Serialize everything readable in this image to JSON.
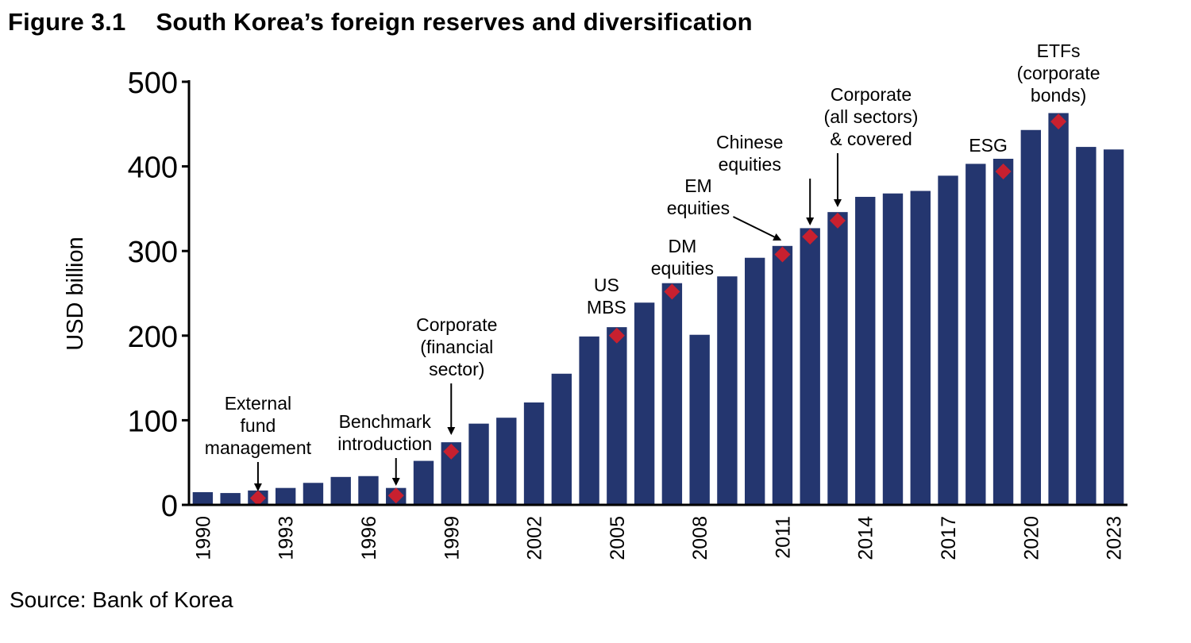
{
  "figure": {
    "label": "Figure 3.1",
    "title": "South Korea’s foreign reserves and diversification",
    "source": "Source: Bank of Korea"
  },
  "colors": {
    "bar": "#24366f",
    "marker": "#c8202f",
    "axis": "#000000"
  },
  "chart_data": {
    "type": "bar",
    "title": "South Korea’s foreign reserves and diversification",
    "xlabel": "",
    "ylabel": "USD billion",
    "ylim": [
      0,
      500
    ],
    "yticks": [
      0,
      100,
      200,
      300,
      400,
      500
    ],
    "grid": false,
    "categories": [
      1990,
      1991,
      1992,
      1993,
      1994,
      1995,
      1996,
      1997,
      1998,
      1999,
      2000,
      2001,
      2002,
      2003,
      2004,
      2005,
      2006,
      2007,
      2008,
      2009,
      2010,
      2011,
      2012,
      2013,
      2014,
      2015,
      2016,
      2017,
      2018,
      2019,
      2020,
      2021,
      2022,
      2023
    ],
    "xtick_labels": [
      "1990",
      "1993",
      "1996",
      "1999",
      "2002",
      "2005",
      "2008",
      "2011",
      "2014",
      "2017",
      "2020",
      "2023"
    ],
    "values": [
      15,
      14,
      17,
      20,
      26,
      33,
      34,
      20,
      52,
      74,
      96,
      103,
      121,
      155,
      199,
      210,
      239,
      262,
      201,
      270,
      292,
      306,
      327,
      346,
      364,
      368,
      371,
      389,
      403,
      409,
      443,
      463,
      423,
      420
    ],
    "markers": [
      {
        "year": 1992,
        "value": 8
      },
      {
        "year": 1997,
        "value": 11
      },
      {
        "year": 1999,
        "value": 63
      },
      {
        "year": 2005,
        "value": 200
      },
      {
        "year": 2007,
        "value": 252
      },
      {
        "year": 2011,
        "value": 296
      },
      {
        "year": 2012,
        "value": 317
      },
      {
        "year": 2013,
        "value": 336
      },
      {
        "year": 2019,
        "value": 394
      },
      {
        "year": 2021,
        "value": 453
      }
    ],
    "annotations": [
      {
        "year": 1992,
        "lines": [
          "External",
          "fund",
          "management"
        ],
        "arrow": "down"
      },
      {
        "year": 1997,
        "lines": [
          "Benchmark",
          "introduction"
        ],
        "arrow": "down"
      },
      {
        "year": 1999,
        "lines": [
          "Corporate",
          "(financial",
          "sector)"
        ],
        "arrow": "down"
      },
      {
        "year": 2005,
        "lines": [
          "US",
          "MBS"
        ],
        "arrow": "none"
      },
      {
        "year": 2007,
        "lines": [
          "DM",
          "equities"
        ],
        "arrow": "none"
      },
      {
        "year": 2011,
        "lines": [
          "EM",
          "equities"
        ],
        "arrow": "diagonal"
      },
      {
        "year": 2012,
        "lines": [
          "Chinese",
          "equities"
        ],
        "arrow": "down"
      },
      {
        "year": 2013,
        "lines": [
          "Corporate",
          "(all sectors)",
          "& covered"
        ],
        "arrow": "down"
      },
      {
        "year": 2019,
        "lines": [
          "ESG"
        ],
        "arrow": "none"
      },
      {
        "year": 2021,
        "lines": [
          "ETFs",
          "(corporate",
          "bonds)"
        ],
        "arrow": "none"
      }
    ]
  }
}
